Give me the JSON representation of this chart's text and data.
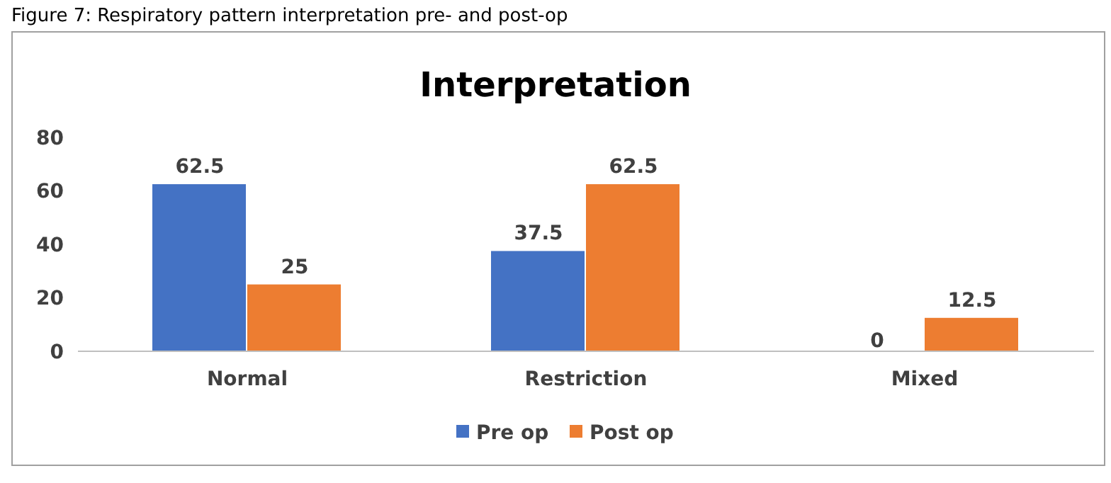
{
  "chart_data": {
    "type": "bar",
    "title": "Interpretation",
    "annotations": [
      "Figure 7: Respiratory pattern interpretation pre- and post-op"
    ],
    "categories": [
      "Normal",
      "Restriction",
      "Mixed"
    ],
    "series": [
      {
        "name": "Pre op",
        "color": "#4472c4",
        "values": [
          62.5,
          37.5,
          0
        ]
      },
      {
        "name": "Post op",
        "color": "#ed7d31",
        "values": [
          25,
          62.5,
          12.5
        ]
      }
    ],
    "ylim": [
      0,
      80
    ],
    "yticks": [
      0,
      20,
      40,
      60,
      80
    ],
    "data_labels": true,
    "legend": "bottom",
    "grid": false
  }
}
